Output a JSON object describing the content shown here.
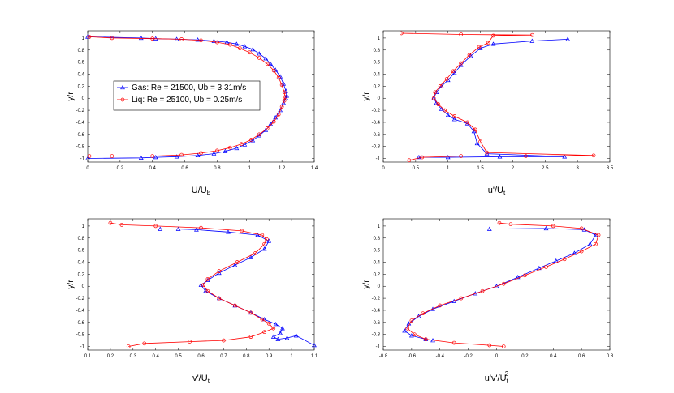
{
  "chart_data": [
    {
      "type": "line",
      "id": "p1",
      "xlabel": "U/U",
      "xlabel_sub": "b",
      "ylabel": "y/r",
      "xlim": [
        0,
        1.4
      ],
      "ylim": [
        -1.06,
        1.12
      ],
      "xticks": [
        "0",
        "0.2",
        "0.4",
        "0.6",
        "0.8",
        "1",
        "1.2",
        "1.4"
      ],
      "yticks": [
        "-1",
        "-0.8",
        "-0.6",
        "-0.4",
        "-0.2",
        "0",
        "0.2",
        "0.4",
        "0.6",
        "0.8",
        "1"
      ],
      "legend": {
        "position": "middle-left",
        "entries": [
          "Gas: Re = 21500, Ub = 3.31m/s",
          "Liq: Re = 25100, Ub = 0.25m/s"
        ]
      },
      "series": [
        {
          "name": "Gas: Re = 21500, Ub = 3.31m/s",
          "color": "#0000ff",
          "marker": "triangle",
          "x": [
            0.0,
            0.33,
            0.42,
            0.55,
            0.68,
            0.78,
            0.85,
            0.92,
            0.97,
            1.02,
            1.06,
            1.1,
            1.13,
            1.16,
            1.19,
            1.21,
            1.225,
            1.23,
            1.225,
            1.21,
            1.19,
            1.16,
            1.13,
            1.1,
            1.06,
            1.02,
            0.97,
            0.92,
            0.86,
            0.78,
            0.68,
            0.55,
            0.42,
            0.33,
            0.0
          ],
          "y": [
            -1.0,
            -0.99,
            -0.98,
            -0.97,
            -0.95,
            -0.92,
            -0.88,
            -0.83,
            -0.77,
            -0.7,
            -0.62,
            -0.53,
            -0.43,
            -0.32,
            -0.2,
            -0.08,
            0.0,
            0.04,
            0.12,
            0.24,
            0.36,
            0.47,
            0.57,
            0.66,
            0.74,
            0.81,
            0.86,
            0.9,
            0.93,
            0.95,
            0.97,
            0.98,
            0.99,
            1.0,
            1.02
          ]
        },
        {
          "name": "Liq: Re = 25100, Ub = 0.25m/s",
          "color": "#ff0000",
          "marker": "circle",
          "x": [
            0.01,
            0.15,
            0.4,
            0.58,
            0.7,
            0.8,
            0.88,
            0.95,
            1.01,
            1.06,
            1.11,
            1.15,
            1.18,
            1.2,
            1.215,
            1.22,
            1.215,
            1.2,
            1.18,
            1.15,
            1.11,
            1.06,
            1.0,
            0.94,
            0.88,
            0.8,
            0.7,
            0.58,
            0.4,
            0.15,
            0.01
          ],
          "y": [
            -0.96,
            -0.96,
            -0.96,
            -0.94,
            -0.91,
            -0.87,
            -0.82,
            -0.76,
            -0.69,
            -0.6,
            -0.5,
            -0.39,
            -0.27,
            -0.14,
            -0.04,
            0.02,
            0.1,
            0.22,
            0.34,
            0.46,
            0.57,
            0.67,
            0.76,
            0.83,
            0.89,
            0.93,
            0.96,
            0.98,
            0.99,
            1.0,
            1.02
          ]
        }
      ]
    },
    {
      "type": "line",
      "id": "p2",
      "xlabel": "u'/U",
      "xlabel_sub": "t",
      "ylabel": "y/r",
      "xlim": [
        0,
        3.5
      ],
      "ylim": [
        -1.06,
        1.12
      ],
      "xticks": [
        "0",
        "0.5",
        "1",
        "1.5",
        "2",
        "2.5",
        "3",
        "3.5"
      ],
      "yticks": [
        "-1",
        "-0.8",
        "-0.6",
        "-0.4",
        "-0.2",
        "0",
        "0.2",
        "0.4",
        "0.6",
        "0.8",
        "1"
      ],
      "series": [
        {
          "name": "Gas",
          "color": "#0000ff",
          "marker": "triangle",
          "x": [
            0.55,
            1.0,
            1.8,
            2.8,
            1.6,
            1.45,
            1.4,
            1.3,
            1.1,
            1.0,
            0.9,
            0.82,
            0.78,
            0.82,
            0.9,
            1.0,
            1.1,
            1.2,
            1.35,
            1.5,
            1.7,
            2.3,
            2.85
          ],
          "y": [
            -0.98,
            -0.98,
            -0.97,
            -0.97,
            -0.92,
            -0.75,
            -0.55,
            -0.42,
            -0.35,
            -0.28,
            -0.18,
            -0.08,
            0.0,
            0.1,
            0.2,
            0.3,
            0.42,
            0.55,
            0.7,
            0.83,
            0.9,
            0.95,
            0.98
          ]
        },
        {
          "name": "Liq",
          "color": "#ff0000",
          "marker": "circle",
          "x": [
            0.4,
            0.6,
            1.2,
            2.2,
            3.25,
            1.6,
            1.5,
            1.42,
            1.3,
            1.1,
            0.95,
            0.85,
            0.78,
            0.8,
            0.88,
            0.98,
            1.08,
            1.2,
            1.33,
            1.48,
            1.62,
            1.7,
            2.3,
            1.2,
            0.28
          ],
          "y": [
            -1.03,
            -0.98,
            -0.96,
            -0.96,
            -0.95,
            -0.9,
            -0.72,
            -0.52,
            -0.4,
            -0.3,
            -0.2,
            -0.1,
            0.0,
            0.1,
            0.2,
            0.32,
            0.45,
            0.58,
            0.72,
            0.85,
            0.92,
            1.04,
            1.05,
            1.06,
            1.08
          ]
        }
      ]
    },
    {
      "type": "line",
      "id": "p3",
      "xlabel": "v'/U",
      "xlabel_sub": "t",
      "ylabel": "y/r",
      "xlim": [
        0.1,
        1.1
      ],
      "ylim": [
        -1.06,
        1.12
      ],
      "xticks": [
        "0.1",
        "0.2",
        "0.3",
        "0.4",
        "0.5",
        "0.6",
        "0.7",
        "0.8",
        "0.9",
        "1",
        "1.1"
      ],
      "yticks": [
        "-1",
        "-0.8",
        "-0.6",
        "-0.4",
        "-0.2",
        "0",
        "0.2",
        "0.4",
        "0.6",
        "0.8",
        "1"
      ],
      "series": [
        {
          "name": "Gas",
          "color": "#0000ff",
          "marker": "triangle",
          "x": [
            0.42,
            0.5,
            0.58,
            0.72,
            0.85,
            0.9,
            0.88,
            0.82,
            0.75,
            0.68,
            0.63,
            0.6,
            0.62,
            0.68,
            0.75,
            0.82,
            0.88,
            0.93,
            0.96,
            0.95,
            0.92,
            0.94,
            0.98,
            1.02,
            1.1
          ],
          "y": [
            0.95,
            0.95,
            0.94,
            0.9,
            0.85,
            0.75,
            0.62,
            0.48,
            0.35,
            0.22,
            0.1,
            0.02,
            -0.08,
            -0.2,
            -0.32,
            -0.44,
            -0.55,
            -0.63,
            -0.7,
            -0.78,
            -0.84,
            -0.88,
            -0.86,
            -0.82,
            -0.98
          ]
        },
        {
          "name": "Liq",
          "color": "#ff0000",
          "marker": "circle",
          "x": [
            0.2,
            0.25,
            0.4,
            0.6,
            0.78,
            0.87,
            0.89,
            0.88,
            0.84,
            0.76,
            0.68,
            0.63,
            0.61,
            0.63,
            0.68,
            0.75,
            0.82,
            0.87,
            0.9,
            0.92,
            0.88,
            0.82,
            0.7,
            0.55,
            0.35,
            0.28
          ],
          "y": [
            1.05,
            1.02,
            1.0,
            0.97,
            0.92,
            0.85,
            0.78,
            0.7,
            0.55,
            0.4,
            0.25,
            0.12,
            0.02,
            -0.08,
            -0.2,
            -0.32,
            -0.44,
            -0.55,
            -0.62,
            -0.7,
            -0.76,
            -0.84,
            -0.9,
            -0.92,
            -0.95,
            -1.0
          ]
        }
      ]
    },
    {
      "type": "line",
      "id": "p4",
      "xlabel": "u'v'/U",
      "xlabel_sub": "t",
      "xlabel_sup": "2",
      "ylabel": "y/r",
      "xlim": [
        -0.8,
        0.8
      ],
      "ylim": [
        -1.06,
        1.12
      ],
      "xticks": [
        "-0.8",
        "-0.6",
        "-0.4",
        "-0.2",
        "0",
        "0.2",
        "0.4",
        "0.6",
        "0.8"
      ],
      "yticks": [
        "-1",
        "-0.8",
        "-0.6",
        "-0.4",
        "-0.2",
        "0",
        "0.2",
        "0.4",
        "0.6",
        "0.8",
        "1"
      ],
      "series": [
        {
          "name": "Gas",
          "color": "#0000ff",
          "marker": "triangle",
          "x": [
            -0.05,
            0.35,
            0.62,
            0.7,
            0.66,
            0.55,
            0.42,
            0.3,
            0.15,
            0.0,
            -0.15,
            -0.3,
            -0.45,
            -0.55,
            -0.62,
            -0.65,
            -0.6,
            -0.5,
            -0.45
          ],
          "y": [
            0.95,
            0.96,
            0.94,
            0.85,
            0.7,
            0.55,
            0.42,
            0.3,
            0.15,
            0.0,
            -0.12,
            -0.25,
            -0.38,
            -0.5,
            -0.62,
            -0.74,
            -0.82,
            -0.88,
            -0.9
          ]
        },
        {
          "name": "Liq",
          "color": "#ff0000",
          "marker": "circle",
          "x": [
            0.02,
            0.1,
            0.4,
            0.6,
            0.72,
            0.7,
            0.6,
            0.48,
            0.35,
            0.2,
            0.05,
            -0.1,
            -0.25,
            -0.4,
            -0.52,
            -0.6,
            -0.63,
            -0.58,
            -0.5,
            -0.3,
            -0.05,
            0.05
          ],
          "y": [
            1.05,
            1.03,
            1.0,
            0.96,
            0.85,
            0.7,
            0.58,
            0.45,
            0.32,
            0.18,
            0.04,
            -0.08,
            -0.2,
            -0.32,
            -0.45,
            -0.57,
            -0.7,
            -0.8,
            -0.88,
            -0.94,
            -0.98,
            -1.0
          ]
        }
      ]
    }
  ]
}
